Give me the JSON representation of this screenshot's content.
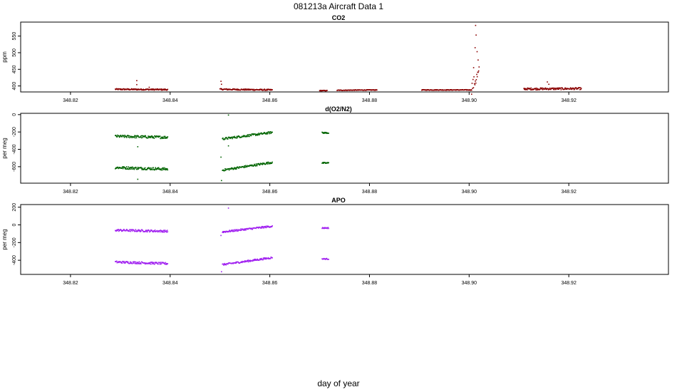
{
  "title": "081213a   Aircraft Data 1",
  "xlabel": "day of year",
  "chart_data": [
    {
      "type": "scatter",
      "title": "CO2",
      "ylabel": "ppm",
      "color": "#8b0000",
      "xlim": [
        348.81,
        348.94
      ],
      "ylim": [
        382,
        592
      ],
      "xticks": [
        "348.82",
        "348.84",
        "348.86",
        "348.88",
        "348.90",
        "348.92"
      ],
      "xtick_values": [
        348.82,
        348.84,
        348.86,
        348.88,
        348.9,
        348.92
      ],
      "yticks": [
        "400",
        "450",
        "500",
        "550"
      ],
      "ytick_values": [
        400,
        450,
        500,
        550
      ],
      "segments": [
        {
          "x": [
            348.829,
            348.8395
          ],
          "y": [
            390,
            389
          ],
          "noise": 2
        },
        {
          "x": [
            348.85,
            348.8605
          ],
          "y": [
            390,
            388
          ],
          "noise": 2
        },
        {
          "x": [
            348.87,
            348.8715
          ],
          "y": [
            386,
            386
          ],
          "noise": 1
        },
        {
          "x": [
            348.8735,
            348.8815
          ],
          "y": [
            387,
            388
          ],
          "noise": 1
        },
        {
          "x": [
            348.8905,
            348.9005
          ],
          "y": [
            388,
            388
          ],
          "noise": 1
        },
        {
          "x": [
            348.9005,
            348.902
          ],
          "y": [
            395,
            440
          ],
          "noise": 20
        },
        {
          "x": [
            348.911,
            348.9225
          ],
          "y": [
            391,
            392
          ],
          "noise": 3
        }
      ],
      "spikes": [
        {
          "x": 348.8333,
          "y": 416
        },
        {
          "x": 348.8333,
          "y": 404
        },
        {
          "x": 348.8358,
          "y": 396
        },
        {
          "x": 348.8502,
          "y": 414
        },
        {
          "x": 348.8503,
          "y": 405
        },
        {
          "x": 348.9013,
          "y": 582
        },
        {
          "x": 348.9014,
          "y": 553
        },
        {
          "x": 348.9012,
          "y": 515
        },
        {
          "x": 348.9016,
          "y": 503
        },
        {
          "x": 348.9018,
          "y": 478
        },
        {
          "x": 348.9009,
          "y": 455
        },
        {
          "x": 348.9157,
          "y": 412
        },
        {
          "x": 348.916,
          "y": 405
        }
      ]
    },
    {
      "type": "scatter",
      "title": "d(O2/N2)",
      "ylabel": "per meg",
      "color": "#006400",
      "xlim": [
        348.81,
        348.94
      ],
      "ylim": [
        -790,
        15
      ],
      "xticks": [
        "348.82",
        "348.84",
        "348.86",
        "348.88",
        "348.90",
        "348.92"
      ],
      "xtick_values": [
        348.82,
        348.84,
        348.86,
        348.88,
        348.9,
        348.92
      ],
      "yticks": [
        "-600",
        "-400",
        "-200",
        "0"
      ],
      "ytick_values": [
        -600,
        -400,
        -200,
        0
      ],
      "segments": [
        {
          "x": [
            348.829,
            348.8395
          ],
          "y": [
            -250,
            -262
          ],
          "noise": 15
        },
        {
          "x": [
            348.829,
            348.8395
          ],
          "y": [
            -610,
            -628
          ],
          "noise": 15
        },
        {
          "x": [
            348.8505,
            348.8605
          ],
          "y": [
            -280,
            -205
          ],
          "noise": 12
        },
        {
          "x": [
            348.8505,
            348.8605
          ],
          "y": [
            -640,
            -550
          ],
          "noise": 12
        },
        {
          "x": [
            348.8705,
            348.8718
          ],
          "y": [
            -210,
            -210
          ],
          "noise": 8
        },
        {
          "x": [
            348.8705,
            348.8718
          ],
          "y": [
            -558,
            -558
          ],
          "noise": 8
        }
      ],
      "spikes": [
        {
          "x": 348.8335,
          "y": -370
        },
        {
          "x": 348.8335,
          "y": -745
        },
        {
          "x": 348.8502,
          "y": -490
        },
        {
          "x": 348.8503,
          "y": -760
        },
        {
          "x": 348.8517,
          "y": -5
        },
        {
          "x": 348.8517,
          "y": -360
        }
      ]
    },
    {
      "type": "scatter",
      "title": "APO",
      "ylabel": "per meg",
      "color": "#a020f0",
      "xlim": [
        348.81,
        348.94
      ],
      "ylim": [
        -560,
        230
      ],
      "xticks": [
        "348.82",
        "348.84",
        "348.86",
        "348.88",
        "348.90",
        "348.92"
      ],
      "xtick_values": [
        348.82,
        348.84,
        348.86,
        348.88,
        348.9,
        348.92
      ],
      "yticks": [
        "-400",
        "-200",
        "0",
        "200"
      ],
      "ytick_values": [
        -400,
        -200,
        0,
        200
      ],
      "segments": [
        {
          "x": [
            348.829,
            348.8395
          ],
          "y": [
            -60,
            -72
          ],
          "noise": 12
        },
        {
          "x": [
            348.829,
            348.8395
          ],
          "y": [
            -420,
            -438
          ],
          "noise": 12
        },
        {
          "x": [
            348.8505,
            348.8605
          ],
          "y": [
            -80,
            -15
          ],
          "noise": 10
        },
        {
          "x": [
            348.8505,
            348.8605
          ],
          "y": [
            -450,
            -370
          ],
          "noise": 10
        },
        {
          "x": [
            348.8705,
            348.8718
          ],
          "y": [
            -35,
            -35
          ],
          "noise": 6
        },
        {
          "x": [
            348.8705,
            348.8718
          ],
          "y": [
            -385,
            -385
          ],
          "noise": 6
        }
      ],
      "spikes": [
        {
          "x": 348.8517,
          "y": 190
        },
        {
          "x": 348.8503,
          "y": -530
        },
        {
          "x": 348.8502,
          "y": -120
        }
      ]
    }
  ]
}
